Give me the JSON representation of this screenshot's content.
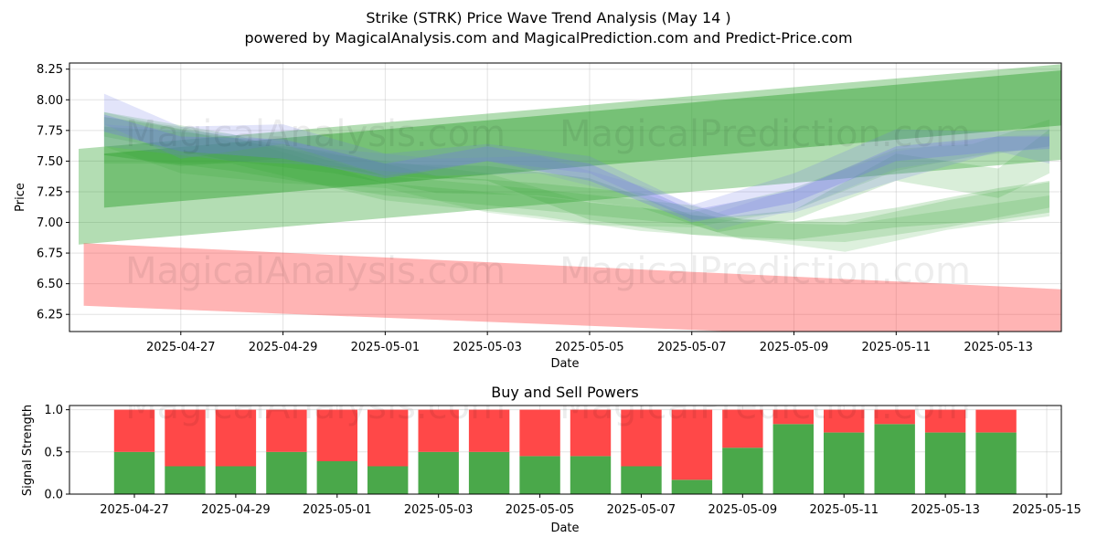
{
  "title": "Strike (STRK) Price Wave Trend Analysis (May 14 )",
  "subtitle": "powered by MagicalAnalysis.com and MagicalPrediction.com and Predict-Price.com",
  "watermarks": [
    "MagicalAnalysis.com",
    "MagicalPrediction.com"
  ],
  "colors": {
    "green": "#2ca02c",
    "blue": "#6f78e8",
    "red": "#ff3b3b",
    "buy": "#4aa84a",
    "sell": "#ff4848"
  },
  "chart_data": [
    {
      "type": "area",
      "name": "price-wave",
      "xlabel": "Date",
      "ylabel": "Price",
      "ylim": [
        6.11,
        8.3
      ],
      "xlim": [
        "2025-04-25",
        "2025-05-14"
      ],
      "yticks": [
        "6.25",
        "6.50",
        "6.75",
        "7.00",
        "7.25",
        "7.50",
        "7.75",
        "8.00",
        "8.25"
      ],
      "xticks": [
        "2025-04-27",
        "2025-04-29",
        "2025-05-01",
        "2025-05-03",
        "2025-05-05",
        "2025-05-07",
        "2025-05-09",
        "2025-05-11",
        "2025-05-13"
      ],
      "grid": true,
      "bands": [
        {
          "name": "green-trend-outer",
          "color": "green",
          "opacity": 0.36,
          "lower": [
            [
              0,
              6.82
            ],
            [
              19.5,
              7.52
            ]
          ],
          "upper": [
            [
              0,
              7.6
            ],
            [
              19.5,
              8.3
            ]
          ]
        },
        {
          "name": "green-trend-inner",
          "color": "green",
          "opacity": 0.45,
          "lower": [
            [
              0.5,
              7.12
            ],
            [
              19.5,
              7.8
            ]
          ],
          "upper": [
            [
              0.5,
              7.56
            ],
            [
              19.5,
              8.25
            ]
          ]
        },
        {
          "name": "red-trend",
          "color": "red",
          "opacity": 0.38,
          "lower": [
            [
              0.1,
              6.32
            ],
            [
              19.5,
              6.0
            ]
          ],
          "upper": [
            [
              0.1,
              6.83
            ],
            [
              19.5,
              6.45
            ]
          ]
        },
        {
          "name": "green-wave-1",
          "color": "green",
          "opacity": 0.18,
          "lower": [
            [
              0.5,
              7.55
            ],
            [
              3,
              7.42
            ],
            [
              6,
              7.22
            ],
            [
              9,
              7.1
            ],
            [
              12,
              6.98
            ],
            [
              13,
              6.86
            ],
            [
              15,
              6.84
            ],
            [
              17,
              6.96
            ],
            [
              19,
              7.12
            ]
          ],
          "upper": [
            [
              0.5,
              7.9
            ],
            [
              3,
              7.72
            ],
            [
              6,
              7.38
            ],
            [
              9,
              7.27
            ],
            [
              12,
              7.14
            ],
            [
              13,
              7.02
            ],
            [
              15,
              7.0
            ],
            [
              17,
              7.18
            ],
            [
              19,
              7.33
            ]
          ]
        },
        {
          "name": "green-wave-2",
          "color": "green",
          "opacity": 0.16,
          "lower": [
            [
              0.5,
              7.48
            ],
            [
              3,
              7.48
            ],
            [
              6,
              7.18
            ],
            [
              9,
              7.05
            ],
            [
              11,
              6.93
            ],
            [
              13,
              6.87
            ],
            [
              15,
              6.76
            ],
            [
              17,
              6.94
            ],
            [
              19,
              7.05
            ]
          ],
          "upper": [
            [
              0.5,
              7.86
            ],
            [
              3,
              7.7
            ],
            [
              6,
              7.32
            ],
            [
              9,
              7.21
            ],
            [
              11,
              7.12
            ],
            [
              13,
              7.0
            ],
            [
              15,
              6.98
            ],
            [
              17,
              7.1
            ],
            [
              19,
              7.22
            ]
          ]
        },
        {
          "name": "green-wave-3",
          "color": "green",
          "opacity": 0.2,
          "lower": [
            [
              0.5,
              7.55
            ],
            [
              2,
              7.46
            ],
            [
              4,
              7.52
            ],
            [
              6,
              7.38
            ],
            [
              8,
              7.34
            ],
            [
              10,
              7.02
            ],
            [
              12,
              6.9
            ],
            [
              14,
              6.86
            ],
            [
              16,
              6.96
            ],
            [
              18,
              7.02
            ],
            [
              19,
              7.08
            ]
          ],
          "upper": [
            [
              0.5,
              7.78
            ],
            [
              2,
              7.74
            ],
            [
              4,
              7.64
            ],
            [
              6,
              7.48
            ],
            [
              8,
              7.46
            ],
            [
              10,
              7.36
            ],
            [
              12,
              7.06
            ],
            [
              14,
              7.0
            ],
            [
              16,
              7.12
            ],
            [
              18,
              7.28
            ],
            [
              19,
              7.34
            ]
          ]
        },
        {
          "name": "green-wave-4",
          "color": "green",
          "opacity": 0.14,
          "lower": [
            [
              0.5,
              7.62
            ],
            [
              2,
              7.4
            ],
            [
              4,
              7.32
            ],
            [
              6,
              7.28
            ],
            [
              8,
              7.08
            ],
            [
              10,
              6.98
            ],
            [
              12,
              6.96
            ],
            [
              14,
              7.1
            ],
            [
              16,
              7.42
            ],
            [
              17.5,
              7.54
            ],
            [
              19,
              7.62
            ]
          ],
          "upper": [
            [
              0.5,
              7.86
            ],
            [
              2,
              7.78
            ],
            [
              4,
              7.6
            ],
            [
              6,
              7.5
            ],
            [
              8,
              7.4
            ],
            [
              10,
              7.16
            ],
            [
              12,
              7.08
            ],
            [
              14,
              7.28
            ],
            [
              16,
              7.6
            ],
            [
              17.5,
              7.64
            ],
            [
              19,
              7.84
            ]
          ]
        },
        {
          "name": "green-wave-5",
          "color": "green",
          "opacity": 0.18,
          "lower": [
            [
              0.5,
              7.7
            ],
            [
              3,
              7.5
            ],
            [
              5,
              7.4
            ],
            [
              7,
              7.24
            ],
            [
              9,
              7.22
            ],
            [
              11,
              7.12
            ],
            [
              12.5,
              6.92
            ],
            [
              14,
              7.02
            ],
            [
              16,
              7.34
            ],
            [
              18,
              7.2
            ],
            [
              19,
              7.4
            ]
          ],
          "upper": [
            [
              0.5,
              7.9
            ],
            [
              3,
              7.66
            ],
            [
              5,
              7.58
            ],
            [
              7,
              7.38
            ],
            [
              9,
              7.32
            ],
            [
              11,
              7.24
            ],
            [
              12.5,
              7.04
            ],
            [
              14,
              7.1
            ],
            [
              16,
              7.56
            ],
            [
              18,
              7.44
            ],
            [
              19,
              7.76
            ]
          ]
        },
        {
          "name": "blue-wave-1",
          "color": "blue",
          "opacity": 0.2,
          "lower": [
            [
              0.5,
              7.8
            ],
            [
              2,
              7.52
            ],
            [
              4,
              7.64
            ],
            [
              6,
              7.38
            ],
            [
              8,
              7.5
            ],
            [
              10,
              7.4
            ],
            [
              12,
              7.02
            ],
            [
              14,
              7.08
            ],
            [
              16,
              7.34
            ],
            [
              18,
              7.58
            ],
            [
              19,
              7.48
            ]
          ],
          "upper": [
            [
              0.5,
              8.05
            ],
            [
              2,
              7.78
            ],
            [
              4,
              7.8
            ],
            [
              6,
              7.56
            ],
            [
              8,
              7.64
            ],
            [
              10,
              7.54
            ],
            [
              12,
              7.14
            ],
            [
              14,
              7.4
            ],
            [
              16,
              7.76
            ],
            [
              18,
              7.74
            ],
            [
              19,
              7.76
            ]
          ]
        },
        {
          "name": "blue-wave-2",
          "color": "blue",
          "opacity": 0.3,
          "lower": [
            [
              0.5,
              7.74
            ],
            [
              2,
              7.58
            ],
            [
              4,
              7.52
            ],
            [
              6,
              7.36
            ],
            [
              8,
              7.5
            ],
            [
              10,
              7.34
            ],
            [
              12,
              7.0
            ],
            [
              14,
              7.16
            ],
            [
              16,
              7.5
            ],
            [
              18,
              7.58
            ],
            [
              19,
              7.6
            ]
          ],
          "upper": [
            [
              0.5,
              7.88
            ],
            [
              2,
              7.7
            ],
            [
              4,
              7.68
            ],
            [
              6,
              7.48
            ],
            [
              8,
              7.62
            ],
            [
              10,
              7.48
            ],
            [
              12,
              7.1
            ],
            [
              14,
              7.26
            ],
            [
              16,
              7.62
            ],
            [
              18,
              7.7
            ],
            [
              19,
              7.7
            ]
          ]
        },
        {
          "name": "blue-wave-3",
          "color": "blue",
          "opacity": 0.14,
          "lower": [
            [
              0.5,
              7.62
            ],
            [
              3,
              7.5
            ],
            [
              5,
              7.46
            ],
            [
              7,
              7.38
            ],
            [
              9,
              7.4
            ],
            [
              11,
              7.2
            ],
            [
              12.5,
              6.94
            ],
            [
              14,
              7.1
            ],
            [
              16,
              7.44
            ],
            [
              18,
              7.56
            ],
            [
              19,
              7.62
            ]
          ],
          "upper": [
            [
              0.5,
              7.8
            ],
            [
              3,
              7.72
            ],
            [
              5,
              7.6
            ],
            [
              7,
              7.52
            ],
            [
              9,
              7.54
            ],
            [
              11,
              7.3
            ],
            [
              12.5,
              7.08
            ],
            [
              14,
              7.28
            ],
            [
              16,
              7.58
            ],
            [
              18,
              7.7
            ],
            [
              19,
              7.72
            ]
          ]
        }
      ]
    },
    {
      "type": "bar",
      "name": "buy-sell-powers",
      "title": "Buy and Sell Powers",
      "xlabel": "Date",
      "ylabel": "Signal Strength",
      "ylim": [
        0,
        1.05
      ],
      "yticks": [
        "0.0",
        "0.5",
        "1.0"
      ],
      "xticks": [
        "2025-04-27",
        "2025-04-29",
        "2025-05-01",
        "2025-05-03",
        "2025-05-05",
        "2025-05-07",
        "2025-05-09",
        "2025-05-11",
        "2025-05-13",
        "2025-05-15"
      ],
      "grid": true,
      "categories": [
        "2025-04-27",
        "2025-04-28",
        "2025-04-29",
        "2025-04-30",
        "2025-05-01",
        "2025-05-02",
        "2025-05-03",
        "2025-05-04",
        "2025-05-05",
        "2025-05-06",
        "2025-05-07",
        "2025-05-08",
        "2025-05-09",
        "2025-05-10",
        "2025-05-11",
        "2025-05-12",
        "2025-05-13",
        "2025-05-14"
      ],
      "series": [
        {
          "name": "Buy",
          "color": "buy",
          "values": [
            0.5,
            0.33,
            0.33,
            0.5,
            0.39,
            0.33,
            0.5,
            0.5,
            0.45,
            0.45,
            0.33,
            0.17,
            0.55,
            0.83,
            0.73,
            0.83,
            0.73,
            0.73
          ]
        },
        {
          "name": "Sell",
          "color": "sell",
          "values": [
            0.5,
            0.67,
            0.67,
            0.5,
            0.61,
            0.67,
            0.5,
            0.5,
            0.55,
            0.55,
            0.67,
            0.83,
            0.45,
            0.17,
            0.27,
            0.17,
            0.27,
            0.27
          ]
        }
      ]
    }
  ]
}
